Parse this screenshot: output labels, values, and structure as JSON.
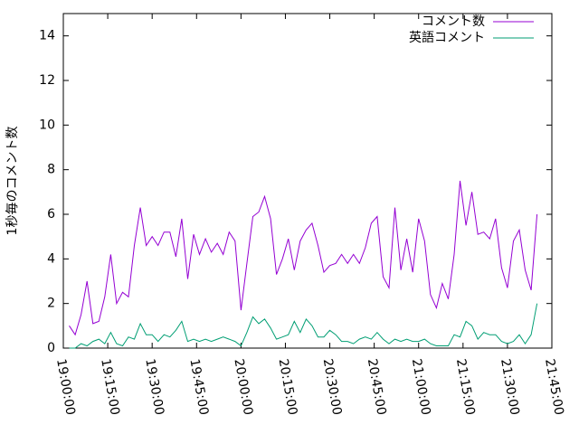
{
  "chart_data": {
    "type": "line",
    "ylabel": "1秒毎のコメント数",
    "x": [
      "19:02:00",
      "19:04:00",
      "19:06:00",
      "19:08:00",
      "19:10:00",
      "19:12:00",
      "19:14:00",
      "19:16:00",
      "19:18:00",
      "19:20:00",
      "19:22:00",
      "19:24:00",
      "19:26:00",
      "19:28:00",
      "19:30:00",
      "19:32:00",
      "19:34:00",
      "19:36:00",
      "19:38:00",
      "19:40:00",
      "19:42:00",
      "19:44:00",
      "19:46:00",
      "19:48:00",
      "19:50:00",
      "19:52:00",
      "19:54:00",
      "19:56:00",
      "19:58:00",
      "20:00:00",
      "20:02:00",
      "20:04:00",
      "20:06:00",
      "20:08:00",
      "20:10:00",
      "20:12:00",
      "20:14:00",
      "20:16:00",
      "20:18:00",
      "20:20:00",
      "20:22:00",
      "20:24:00",
      "20:26:00",
      "20:28:00",
      "20:30:00",
      "20:32:00",
      "20:34:00",
      "20:36:00",
      "20:38:00",
      "20:40:00",
      "20:42:00",
      "20:44:00",
      "20:46:00",
      "20:48:00",
      "20:50:00",
      "20:52:00",
      "20:54:00",
      "20:56:00",
      "20:58:00",
      "21:00:00",
      "21:02:00",
      "21:04:00",
      "21:06:00",
      "21:08:00",
      "21:10:00",
      "21:12:00",
      "21:14:00",
      "21:16:00",
      "21:18:00",
      "21:20:00",
      "21:22:00",
      "21:24:00",
      "21:26:00",
      "21:28:00",
      "21:30:00",
      "21:32:00",
      "21:34:00",
      "21:36:00",
      "21:38:00",
      "21:40:00"
    ],
    "series": [
      {
        "name": "コメント数",
        "color": "#9400d3",
        "values": [
          1.0,
          0.6,
          1.5,
          3.0,
          1.1,
          1.2,
          2.3,
          4.2,
          2.0,
          2.5,
          2.3,
          4.6,
          6.3,
          4.6,
          5.0,
          4.6,
          5.2,
          5.2,
          4.1,
          5.8,
          3.1,
          5.1,
          4.2,
          4.9,
          4.3,
          4.7,
          4.2,
          5.2,
          4.8,
          1.7,
          3.8,
          5.9,
          6.1,
          6.8,
          5.8,
          3.3,
          4.0,
          4.9,
          3.5,
          4.8,
          5.3,
          5.6,
          4.6,
          3.4,
          3.7,
          3.8,
          4.2,
          3.8,
          4.2,
          3.8,
          4.5,
          5.6,
          5.9,
          3.2,
          2.7,
          6.3,
          3.5,
          4.9,
          3.4,
          5.8,
          4.8,
          2.4,
          1.8,
          2.9,
          2.2,
          4.2,
          7.5,
          5.5,
          7.0,
          5.1,
          5.2,
          4.9,
          5.8,
          3.6,
          2.7,
          4.8,
          5.3,
          3.5,
          2.6,
          6.0
        ]
      },
      {
        "name": "英語コメント",
        "color": "#009e73",
        "values": [
          0,
          0,
          0.2,
          0.1,
          0.3,
          0.4,
          0.2,
          0.7,
          0.2,
          0.1,
          0.5,
          0.4,
          1.1,
          0.6,
          0.6,
          0.3,
          0.6,
          0.5,
          0.8,
          1.2,
          0.3,
          0.4,
          0.3,
          0.4,
          0.3,
          0.4,
          0.5,
          0.4,
          0.3,
          0.1,
          0.7,
          1.4,
          1.1,
          1.3,
          0.9,
          0.4,
          0.5,
          0.6,
          1.2,
          0.7,
          1.3,
          1.0,
          0.5,
          0.5,
          0.8,
          0.6,
          0.3,
          0.3,
          0.2,
          0.4,
          0.5,
          0.4,
          0.7,
          0.4,
          0.2,
          0.4,
          0.3,
          0.4,
          0.3,
          0.3,
          0.4,
          0.2,
          0.1,
          0.1,
          0.1,
          0.6,
          0.5,
          1.2,
          1.0,
          0.4,
          0.7,
          0.6,
          0.6,
          0.3,
          0.2,
          0.3,
          0.6,
          0.2,
          0.6,
          2.0
        ]
      }
    ],
    "xlim": [
      "19:00:00",
      "21:45:00"
    ],
    "xticks": [
      "19:00:00",
      "19:15:00",
      "19:30:00",
      "19:45:00",
      "20:00:00",
      "20:15:00",
      "20:30:00",
      "20:45:00",
      "21:00:00",
      "21:15:00",
      "21:30:00",
      "21:45:00"
    ],
    "ylim": [
      0,
      15
    ],
    "yticks": [
      0,
      2,
      4,
      6,
      8,
      10,
      12,
      14
    ],
    "legend": "top-right"
  }
}
